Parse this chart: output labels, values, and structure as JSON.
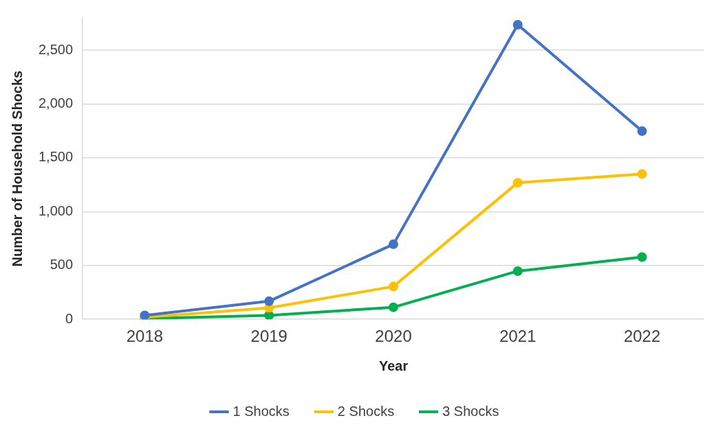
{
  "chart_data": {
    "type": "line",
    "xlabel": "Year",
    "ylabel": "Number of Household Shocks",
    "categories": [
      "2018",
      "2019",
      "2020",
      "2021",
      "2022"
    ],
    "series": [
      {
        "name": "1 Shocks",
        "color": "#4472c4",
        "values": [
          37,
          168,
          697,
          2736,
          1748
        ]
      },
      {
        "name": "2 Shocks",
        "color": "#ffc000",
        "values": [
          19,
          106,
          305,
          1269,
          1350
        ]
      },
      {
        "name": "3 Shocks",
        "color": "#00b050",
        "values": [
          6,
          37,
          112,
          448,
          578
        ]
      }
    ],
    "ylim": [
      0,
      2800
    ],
    "yticks": [
      {
        "value": 0,
        "label": "0"
      },
      {
        "value": 500,
        "label": "500"
      },
      {
        "value": 1000,
        "label": "1,000"
      },
      {
        "value": 1500,
        "label": "1,500"
      },
      {
        "value": 2000,
        "label": "2,000"
      },
      {
        "value": 2500,
        "label": "2,500"
      }
    ],
    "grid": "y",
    "legend": "bottom",
    "marker": "circle",
    "line_style": "solid"
  }
}
